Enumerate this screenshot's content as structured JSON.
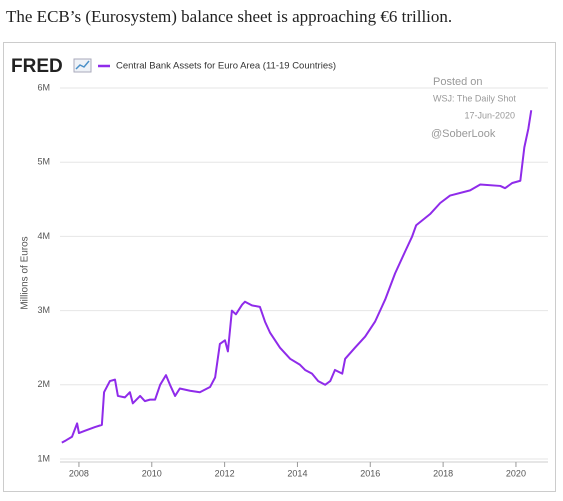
{
  "page_title": "The ECB’s (Eurosystem) balance sheet is approaching €6 trillion.",
  "chart_data": {
    "type": "line",
    "logo": "FRED",
    "y_label": "Millions of Euros",
    "annotations": [
      "Posted on",
      "WSJ: The Daily Shot",
      "17-Jun-2020",
      "@SoberLook"
    ],
    "x": [
      2007.53,
      2007.64,
      2007.81,
      2007.95,
      2008.0,
      2008.16,
      2008.44,
      2008.63,
      2008.69,
      2008.85,
      2008.99,
      2009.07,
      2009.26,
      2009.4,
      2009.48,
      2009.68,
      2009.81,
      2009.95,
      2010.09,
      2010.23,
      2010.39,
      2010.5,
      2010.64,
      2010.77,
      2011.05,
      2011.32,
      2011.6,
      2011.74,
      2011.87,
      2012.01,
      2012.09,
      2012.2,
      2012.31,
      2012.48,
      2012.56,
      2012.75,
      2012.97,
      2013.11,
      2013.25,
      2013.52,
      2013.8,
      2014.07,
      2014.21,
      2014.4,
      2014.57,
      2014.76,
      2014.9,
      2015.03,
      2015.23,
      2015.31,
      2015.58,
      2015.86,
      2016.13,
      2016.41,
      2016.68,
      2016.96,
      2017.15,
      2017.26,
      2017.64,
      2017.92,
      2018.19,
      2018.74,
      2019.02,
      2019.57,
      2019.7,
      2019.9,
      2020.12,
      2020.23,
      2020.34,
      2020.42
    ],
    "series": [
      {
        "name": "Central Bank Assets for Euro Area (11-19 Countries)",
        "color": "#8f2bea",
        "values": [
          1220000,
          1250000,
          1300000,
          1480000,
          1350000,
          1380000,
          1430000,
          1460000,
          1900000,
          2050000,
          2070000,
          1850000,
          1830000,
          1900000,
          1750000,
          1850000,
          1780000,
          1800000,
          1800000,
          2000000,
          2130000,
          2000000,
          1850000,
          1950000,
          1920000,
          1900000,
          1970000,
          2100000,
          2550000,
          2600000,
          2450000,
          3000000,
          2950000,
          3080000,
          3120000,
          3070000,
          3050000,
          2850000,
          2700000,
          2500000,
          2350000,
          2270000,
          2200000,
          2150000,
          2050000,
          2000000,
          2050000,
          2200000,
          2150000,
          2350000,
          2500000,
          2650000,
          2850000,
          3150000,
          3500000,
          3800000,
          4000000,
          4150000,
          4300000,
          4450000,
          4550000,
          4620000,
          4700000,
          4680000,
          4650000,
          4720000,
          4750000,
          5200000,
          5450000,
          5700000
        ]
      }
    ],
    "xlim": [
      2007.48,
      2020.88
    ],
    "xticks": [
      2008,
      2010,
      2012,
      2014,
      2016,
      2018,
      2020
    ],
    "ylim": [
      1000000,
      6000000
    ],
    "yticks": [
      {
        "value": 1000000,
        "label": "1M"
      },
      {
        "value": 2000000,
        "label": "2M"
      },
      {
        "value": 3000000,
        "label": "3M"
      },
      {
        "value": 4000000,
        "label": "4M"
      },
      {
        "value": 5000000,
        "label": "5M"
      },
      {
        "value": 6000000,
        "label": "6M"
      }
    ],
    "grid": true
  }
}
